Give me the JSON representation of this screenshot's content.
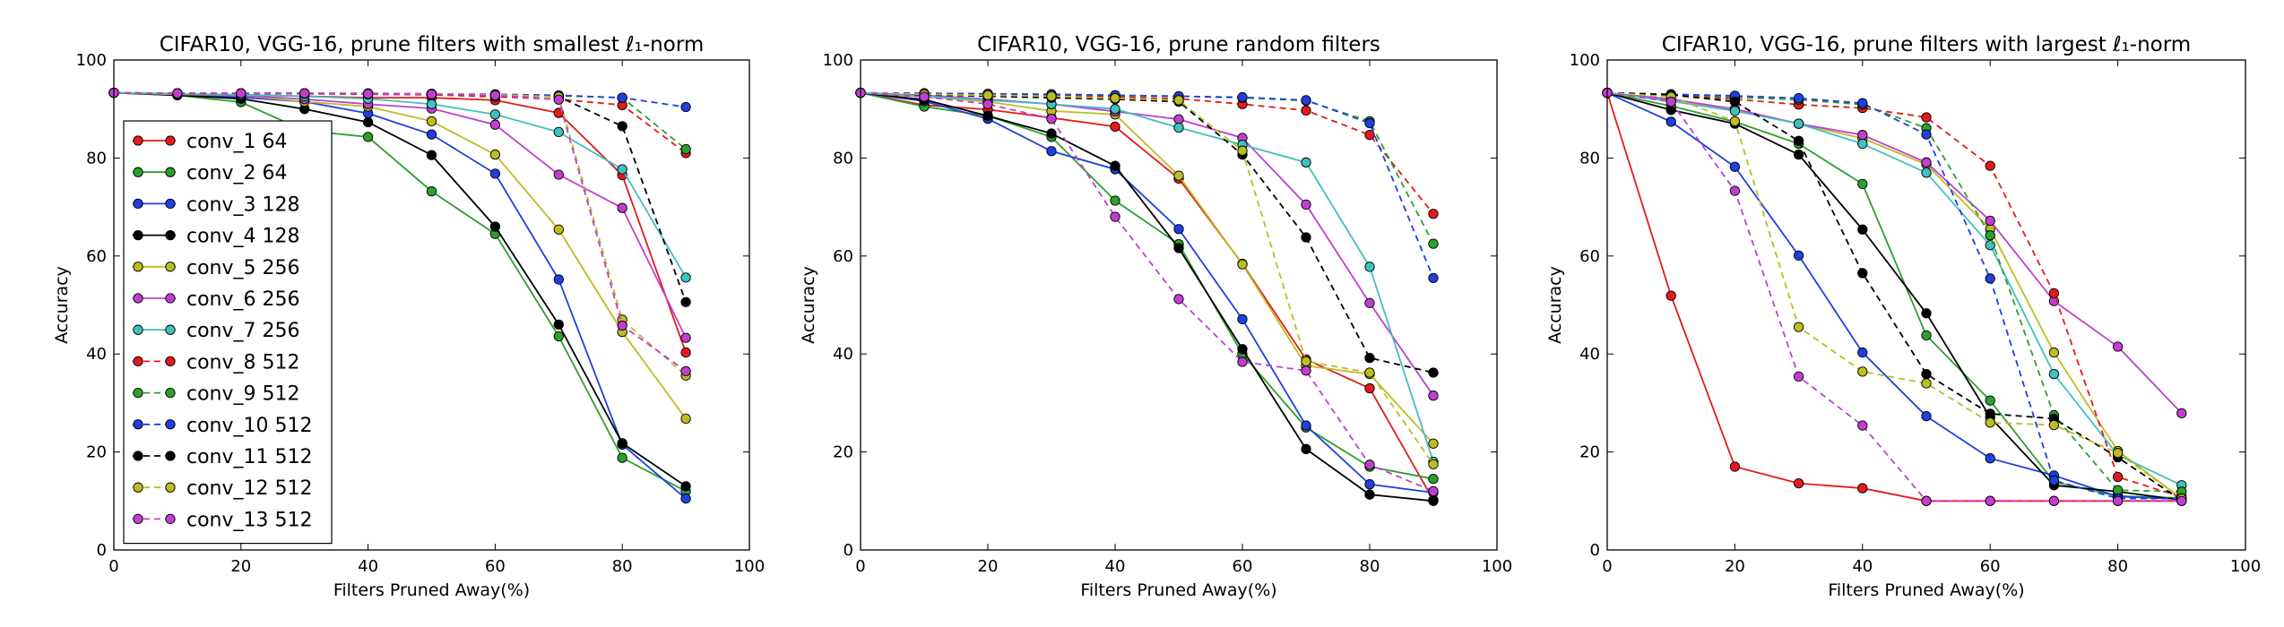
{
  "chart_data": [
    {
      "type": "line",
      "title": "CIFAR10, VGG-16, prune filters with smallest ℓ₁-norm",
      "xlabel": "Filters Pruned Away(%)",
      "ylabel": "Accuracy",
      "xlim": [
        0,
        100
      ],
      "ylim": [
        0,
        100
      ],
      "x_ticks": [
        "0",
        "20",
        "40",
        "60",
        "80",
        "100"
      ],
      "y_ticks": [
        "0",
        "20",
        "40",
        "60",
        "80",
        "100"
      ],
      "x": [
        0,
        10,
        20,
        30,
        40,
        50,
        60,
        70,
        80,
        90
      ],
      "legend": "left",
      "series": [
        {
          "name": "conv_1 64",
          "color": "#e31a1c",
          "dash": false,
          "values": [
            93.3,
            93.1,
            92.9,
            92.6,
            92.3,
            92.3,
            91.8,
            89.2,
            76.5,
            40.3
          ]
        },
        {
          "name": "conv_2 64",
          "color": "#2ca02c",
          "dash": false,
          "values": [
            93.3,
            92.8,
            91.4,
            85.6,
            84.3,
            73.2,
            64.5,
            43.6,
            18.8,
            12.0
          ]
        },
        {
          "name": "conv_3 128",
          "color": "#1f3fe0",
          "dash": false,
          "values": [
            93.3,
            93.0,
            92.4,
            91.5,
            89.1,
            84.8,
            76.8,
            55.2,
            21.5,
            10.5
          ]
        },
        {
          "name": "conv_4 128",
          "color": "#000000",
          "dash": false,
          "values": [
            93.3,
            92.8,
            92.1,
            90.0,
            87.3,
            80.6,
            66.0,
            46.0,
            21.8,
            13.0
          ]
        },
        {
          "name": "conv_5 256",
          "color": "#bcbd22",
          "dash": false,
          "values": [
            93.3,
            93.0,
            92.8,
            91.5,
            90.5,
            87.5,
            80.7,
            65.4,
            44.5,
            26.8
          ]
        },
        {
          "name": "conv_6 256",
          "color": "#c13fd0",
          "dash": false,
          "values": [
            93.3,
            93.1,
            92.8,
            92.0,
            91.0,
            90.1,
            86.8,
            76.6,
            69.8,
            43.3
          ]
        },
        {
          "name": "conv_7 256",
          "color": "#40c0c0",
          "dash": false,
          "values": [
            93.3,
            93.1,
            92.9,
            92.6,
            92.1,
            91.0,
            88.9,
            85.3,
            77.7,
            55.6
          ]
        },
        {
          "name": "conv_8 512",
          "color": "#e31a1c",
          "dash": true,
          "values": [
            93.3,
            93.2,
            93.2,
            93.1,
            93.0,
            92.9,
            92.5,
            92.0,
            90.8,
            81.0
          ]
        },
        {
          "name": "conv_9 512",
          "color": "#2ca02c",
          "dash": true,
          "values": [
            93.3,
            93.2,
            93.2,
            93.2,
            93.1,
            93.1,
            92.9,
            92.7,
            92.3,
            81.8
          ]
        },
        {
          "name": "conv_10 512",
          "color": "#1f3fe0",
          "dash": true,
          "values": [
            93.3,
            93.2,
            93.2,
            93.2,
            93.2,
            93.1,
            93.0,
            92.8,
            92.3,
            90.4
          ]
        },
        {
          "name": "conv_11 512",
          "color": "#000000",
          "dash": true,
          "values": [
            93.3,
            93.2,
            93.2,
            93.2,
            93.1,
            93.0,
            92.8,
            92.5,
            86.5,
            50.6
          ]
        },
        {
          "name": "conv_12 512",
          "color": "#bcbd22",
          "dash": true,
          "values": [
            93.3,
            93.2,
            93.2,
            93.2,
            93.1,
            93.1,
            92.9,
            92.5,
            47.0,
            35.6
          ]
        },
        {
          "name": "conv_13 512",
          "color": "#c13fd0",
          "dash": true,
          "values": [
            93.3,
            93.2,
            93.2,
            93.2,
            93.1,
            93.0,
            92.8,
            91.9,
            45.8,
            36.5
          ]
        }
      ]
    },
    {
      "type": "line",
      "title": "CIFAR10, VGG-16, prune random filters",
      "xlabel": "Filters Pruned Away(%)",
      "ylabel": "Accuracy",
      "xlim": [
        0,
        100
      ],
      "ylim": [
        0,
        100
      ],
      "x_ticks": [
        "0",
        "20",
        "40",
        "60",
        "80",
        "100"
      ],
      "y_ticks": [
        "0",
        "20",
        "40",
        "60",
        "80",
        "100"
      ],
      "x": [
        0,
        10,
        20,
        30,
        40,
        50,
        60,
        70,
        80,
        90
      ],
      "legend": "none",
      "series": [
        {
          "name": "conv_1 64",
          "color": "#e31a1c",
          "dash": false,
          "values": [
            93.3,
            90.8,
            89.9,
            88.2,
            86.4,
            75.8,
            58.4,
            38.9,
            33.0,
            10.2
          ]
        },
        {
          "name": "conv_2 64",
          "color": "#2ca02c",
          "dash": false,
          "values": [
            93.3,
            90.5,
            88.6,
            84.3,
            71.3,
            62.4,
            40.0,
            25.0,
            17.0,
            14.5
          ]
        },
        {
          "name": "conv_3 128",
          "color": "#1f3fe0",
          "dash": false,
          "values": [
            93.3,
            91.6,
            88.0,
            81.4,
            77.7,
            65.5,
            47.1,
            25.4,
            13.4,
            11.7
          ]
        },
        {
          "name": "conv_4 128",
          "color": "#000000",
          "dash": false,
          "values": [
            93.3,
            91.9,
            88.6,
            85.0,
            78.4,
            61.6,
            41.0,
            20.6,
            11.3,
            10.0
          ]
        },
        {
          "name": "conv_5 256",
          "color": "#bcbd22",
          "dash": false,
          "values": [
            93.3,
            92.5,
            91.5,
            89.6,
            88.9,
            76.4,
            58.3,
            37.6,
            35.9,
            21.7
          ]
        },
        {
          "name": "conv_6 256",
          "color": "#c13fd0",
          "dash": false,
          "values": [
            93.3,
            92.8,
            92.0,
            91.0,
            89.5,
            87.9,
            84.1,
            70.5,
            50.4,
            31.5
          ]
        },
        {
          "name": "conv_7 256",
          "color": "#40c0c0",
          "dash": false,
          "values": [
            93.3,
            92.6,
            91.8,
            91.0,
            90.0,
            86.2,
            82.7,
            79.1,
            57.8,
            18.0
          ]
        },
        {
          "name": "conv_8 512",
          "color": "#e31a1c",
          "dash": true,
          "values": [
            93.3,
            93.1,
            93.0,
            92.8,
            92.5,
            92.1,
            91.0,
            89.7,
            84.7,
            68.6
          ]
        },
        {
          "name": "conv_9 512",
          "color": "#2ca02c",
          "dash": true,
          "values": [
            93.3,
            93.2,
            93.1,
            93.0,
            92.8,
            92.6,
            92.3,
            91.7,
            87.5,
            62.5
          ]
        },
        {
          "name": "conv_10 512",
          "color": "#1f3fe0",
          "dash": true,
          "values": [
            93.3,
            93.2,
            93.1,
            93.0,
            92.8,
            92.6,
            92.4,
            91.8,
            87.1,
            55.5
          ]
        },
        {
          "name": "conv_11 512",
          "color": "#000000",
          "dash": true,
          "values": [
            93.3,
            92.9,
            92.6,
            92.3,
            92.0,
            91.5,
            80.7,
            63.8,
            39.2,
            36.2
          ]
        },
        {
          "name": "conv_12 512",
          "color": "#bcbd22",
          "dash": true,
          "values": [
            93.3,
            93.0,
            92.8,
            92.6,
            92.2,
            91.8,
            81.5,
            38.5,
            36.2,
            17.5
          ]
        },
        {
          "name": "conv_13 512",
          "color": "#c13fd0",
          "dash": true,
          "values": [
            93.3,
            92.5,
            91.0,
            88.0,
            68.0,
            51.2,
            38.4,
            36.6,
            17.4,
            12.0
          ]
        }
      ]
    },
    {
      "type": "line",
      "title": "CIFAR10, VGG-16, prune filters with largest ℓ₁-norm",
      "xlabel": "Filters Pruned Away(%)",
      "ylabel": "Accuracy",
      "xlim": [
        0,
        100
      ],
      "ylim": [
        0,
        100
      ],
      "x_ticks": [
        "0",
        "20",
        "40",
        "60",
        "80",
        "100"
      ],
      "y_ticks": [
        "0",
        "20",
        "40",
        "60",
        "80",
        "100"
      ],
      "x": [
        0,
        10,
        20,
        30,
        40,
        50,
        60,
        70,
        80,
        90
      ],
      "legend": "none",
      "series": [
        {
          "name": "conv_1 64",
          "color": "#e31a1c",
          "dash": false,
          "values": [
            93.3,
            51.9,
            17.0,
            13.6,
            12.6,
            10.0,
            10.0,
            10.0,
            10.0,
            10.0
          ]
        },
        {
          "name": "conv_2 64",
          "color": "#2ca02c",
          "dash": false,
          "values": [
            93.3,
            90.6,
            87.4,
            82.9,
            74.7,
            43.8,
            30.5,
            13.9,
            11.0,
            10.6
          ]
        },
        {
          "name": "conv_3 128",
          "color": "#1f3fe0",
          "dash": false,
          "values": [
            93.3,
            87.4,
            78.2,
            60.1,
            40.3,
            27.3,
            18.7,
            15.2,
            10.9,
            10.4
          ]
        },
        {
          "name": "conv_4 128",
          "color": "#000000",
          "dash": false,
          "values": [
            93.3,
            89.8,
            87.0,
            80.7,
            65.4,
            48.3,
            27.1,
            13.2,
            11.9,
            10.2
          ]
        },
        {
          "name": "conv_5 256",
          "color": "#bcbd22",
          "dash": false,
          "values": [
            93.3,
            92.0,
            89.8,
            87.0,
            84.0,
            78.7,
            65.5,
            40.3,
            20.2,
            10.5
          ]
        },
        {
          "name": "conv_6 256",
          "color": "#c13fd0",
          "dash": false,
          "values": [
            93.3,
            92.0,
            90.0,
            87.0,
            84.7,
            79.1,
            67.2,
            50.8,
            41.5,
            27.9
          ]
        },
        {
          "name": "conv_7 256",
          "color": "#40c0c0",
          "dash": false,
          "values": [
            93.3,
            91.6,
            89.6,
            87.0,
            82.9,
            77.0,
            62.2,
            35.9,
            19.4,
            13.2
          ]
        },
        {
          "name": "conv_8 512",
          "color": "#e31a1c",
          "dash": true,
          "values": [
            93.3,
            92.9,
            92.0,
            90.9,
            90.2,
            88.3,
            78.4,
            52.4,
            14.9,
            10.8
          ]
        },
        {
          "name": "conv_9 512",
          "color": "#2ca02c",
          "dash": true,
          "values": [
            93.3,
            93.0,
            92.4,
            91.9,
            90.9,
            86.1,
            64.2,
            27.5,
            12.2,
            11.9
          ]
        },
        {
          "name": "conv_10 512",
          "color": "#1f3fe0",
          "dash": true,
          "values": [
            93.3,
            93.0,
            92.7,
            92.2,
            91.2,
            84.8,
            55.4,
            14.2,
            10.5,
            10.5
          ]
        },
        {
          "name": "conv_11 512",
          "color": "#000000",
          "dash": true,
          "values": [
            93.3,
            92.9,
            91.5,
            83.5,
            56.5,
            35.9,
            27.8,
            26.8,
            18.9,
            10.1
          ]
        },
        {
          "name": "conv_12 512",
          "color": "#bcbd22",
          "dash": true,
          "values": [
            93.3,
            92.5,
            87.5,
            45.5,
            36.4,
            34.0,
            26.0,
            25.5,
            19.8,
            10.5
          ]
        },
        {
          "name": "conv_13 512",
          "color": "#c13fd0",
          "dash": true,
          "values": [
            93.3,
            91.5,
            73.3,
            35.4,
            25.4,
            10.0,
            10.0,
            10.0,
            10.0,
            10.0
          ]
        }
      ]
    }
  ]
}
